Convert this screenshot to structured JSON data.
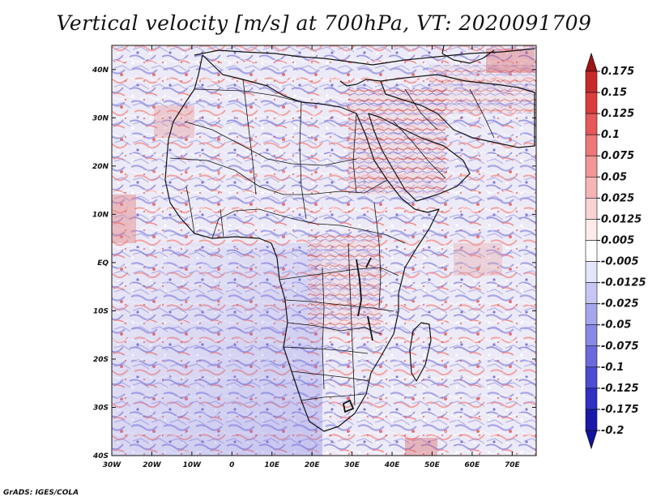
{
  "title": "Vertical velocity [m/s] at 700hPa, VT: 2020091709",
  "credit": "GrADS: IGES/COLA",
  "map": {
    "lon_range": [
      -30,
      76
    ],
    "lat_range": [
      -40,
      45
    ],
    "lon_ticks": [
      {
        "value": -30,
        "label": "30W"
      },
      {
        "value": -20,
        "label": "20W"
      },
      {
        "value": -10,
        "label": "10W"
      },
      {
        "value": 0,
        "label": "0"
      },
      {
        "value": 10,
        "label": "10E"
      },
      {
        "value": 20,
        "label": "20E"
      },
      {
        "value": 30,
        "label": "30E"
      },
      {
        "value": 40,
        "label": "40E"
      },
      {
        "value": 50,
        "label": "50E"
      },
      {
        "value": 60,
        "label": "60E"
      },
      {
        "value": 70,
        "label": "70E"
      }
    ],
    "lat_ticks": [
      {
        "value": 40,
        "label": "40N"
      },
      {
        "value": 30,
        "label": "30N"
      },
      {
        "value": 20,
        "label": "20N"
      },
      {
        "value": 10,
        "label": "10N"
      },
      {
        "value": 0,
        "label": "EQ"
      },
      {
        "value": -10,
        "label": "10S"
      },
      {
        "value": -20,
        "label": "20S"
      },
      {
        "value": -30,
        "label": "30S"
      },
      {
        "value": -40,
        "label": "40S"
      }
    ]
  },
  "colorbar": {
    "levels": [
      {
        "label": "0.175",
        "color": "#b41c1c"
      },
      {
        "label": "0.15",
        "color": "#c82a2a"
      },
      {
        "label": "0.125",
        "color": "#dc3c3c"
      },
      {
        "label": "0.1",
        "color": "#e85858"
      },
      {
        "label": "0.075",
        "color": "#ee7878"
      },
      {
        "label": "0.05",
        "color": "#f29696"
      },
      {
        "label": "0.025",
        "color": "#f6b4b4"
      },
      {
        "label": "0.0125",
        "color": "#fad2d2"
      },
      {
        "label": "0.005",
        "color": "#fdeaea"
      },
      {
        "label": "-0.005",
        "color": "#ffffff"
      },
      {
        "label": "-0.0125",
        "color": "#e4e4fa"
      },
      {
        "label": "-0.025",
        "color": "#c6c6f4"
      },
      {
        "label": "-0.05",
        "color": "#a6a6ee"
      },
      {
        "label": "-0.075",
        "color": "#8888e6"
      },
      {
        "label": "-0.1",
        "color": "#6a6ade"
      },
      {
        "label": "-0.125",
        "color": "#4c4cd4"
      },
      {
        "label": "-0.175",
        "color": "#3030c4"
      },
      {
        "label": "-0.2",
        "color": "#1a1aaa"
      }
    ],
    "top_arrow_color": "#a01414",
    "bottom_arrow_color": "#1212a0"
  }
}
